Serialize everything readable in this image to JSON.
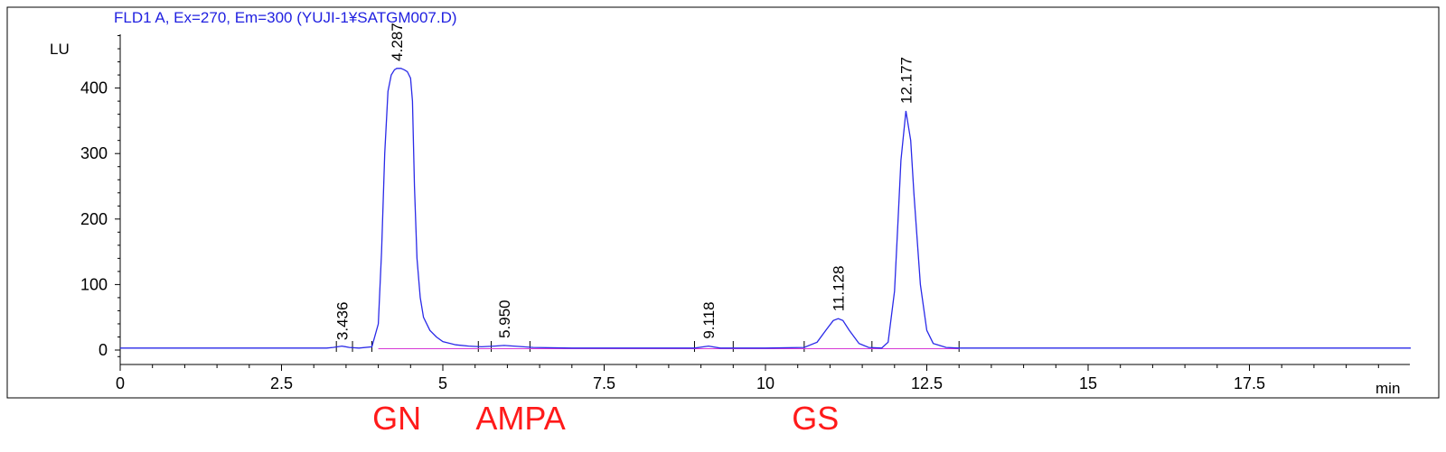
{
  "chart_data": {
    "type": "line",
    "title": "FLD1 A, Ex=270, Em=300 (YUJI-1¥SATGM007.D)",
    "ylabel": "LU",
    "xlabel": "min",
    "xlim": [
      0,
      20
    ],
    "ylim": [
      -20,
      480
    ],
    "x_ticks": [
      0,
      2.5,
      5,
      7.5,
      10,
      12.5,
      15,
      17.5
    ],
    "x_tick_labels": [
      "0",
      "2.5",
      "5",
      "7.5",
      "10",
      "12.5",
      "15",
      "17.5"
    ],
    "y_ticks": [
      0,
      100,
      200,
      300,
      400
    ],
    "y_tick_labels": [
      "0",
      "100",
      "200",
      "300",
      "400"
    ],
    "grid": false,
    "series": [
      {
        "color": "#2a2ae8",
        "x": [
          0,
          3.2,
          3.3,
          3.436,
          3.55,
          3.7,
          3.9,
          4.0,
          4.05,
          4.1,
          4.15,
          4.2,
          4.25,
          4.287,
          4.35,
          4.4,
          4.45,
          4.5,
          4.53,
          4.56,
          4.6,
          4.65,
          4.7,
          4.8,
          4.9,
          5.0,
          5.2,
          5.4,
          5.6,
          5.8,
          5.95,
          6.1,
          6.4,
          7.0,
          8.0,
          8.9,
          9.118,
          9.3,
          10.0,
          10.6,
          10.8,
          10.95,
          11.05,
          11.128,
          11.2,
          11.3,
          11.45,
          11.6,
          11.8,
          11.9,
          12.0,
          12.05,
          12.1,
          12.177,
          12.25,
          12.3,
          12.4,
          12.5,
          12.6,
          12.8,
          13.0,
          14.0,
          16.0,
          20.0
        ],
        "y": [
          3,
          3,
          4,
          6,
          4,
          3,
          5,
          40,
          150,
          300,
          395,
          420,
          428,
          430,
          430,
          428,
          425,
          415,
          380,
          250,
          140,
          80,
          50,
          30,
          20,
          13,
          8,
          6,
          5,
          6,
          7,
          6,
          4,
          3,
          3,
          3,
          6,
          3,
          3,
          4,
          12,
          32,
          45,
          48,
          45,
          30,
          10,
          4,
          3,
          12,
          90,
          190,
          290,
          365,
          320,
          240,
          100,
          30,
          10,
          4,
          3,
          3,
          3,
          3
        ]
      }
    ],
    "peak_labels": [
      {
        "x": 3.436,
        "y": 4,
        "label": "3.436"
      },
      {
        "x": 4.287,
        "y": 430,
        "label": "4.287"
      },
      {
        "x": 5.95,
        "y": 7,
        "label": "5.950"
      },
      {
        "x": 9.118,
        "y": 6,
        "label": "9.118"
      },
      {
        "x": 11.128,
        "y": 48,
        "label": "11.128"
      },
      {
        "x": 12.177,
        "y": 365,
        "label": "12.177"
      }
    ],
    "peak_ticks": [
      3.35,
      3.6,
      3.9,
      5.55,
      5.75,
      6.35,
      8.9,
      9.5,
      10.6,
      11.65,
      13.0
    ],
    "baseline": {
      "x": [
        4.0,
        13.0
      ],
      "y": [
        2,
        2
      ],
      "color": "#d63ad6"
    },
    "annotations": [
      {
        "label": "GN",
        "x": 4.4,
        "color": "#ff1a1a"
      },
      {
        "label": "AMPA",
        "x": 6.0,
        "color": "#ff1a1a"
      },
      {
        "label": "GS",
        "x": 10.9,
        "color": "#ff1a1a"
      }
    ]
  }
}
